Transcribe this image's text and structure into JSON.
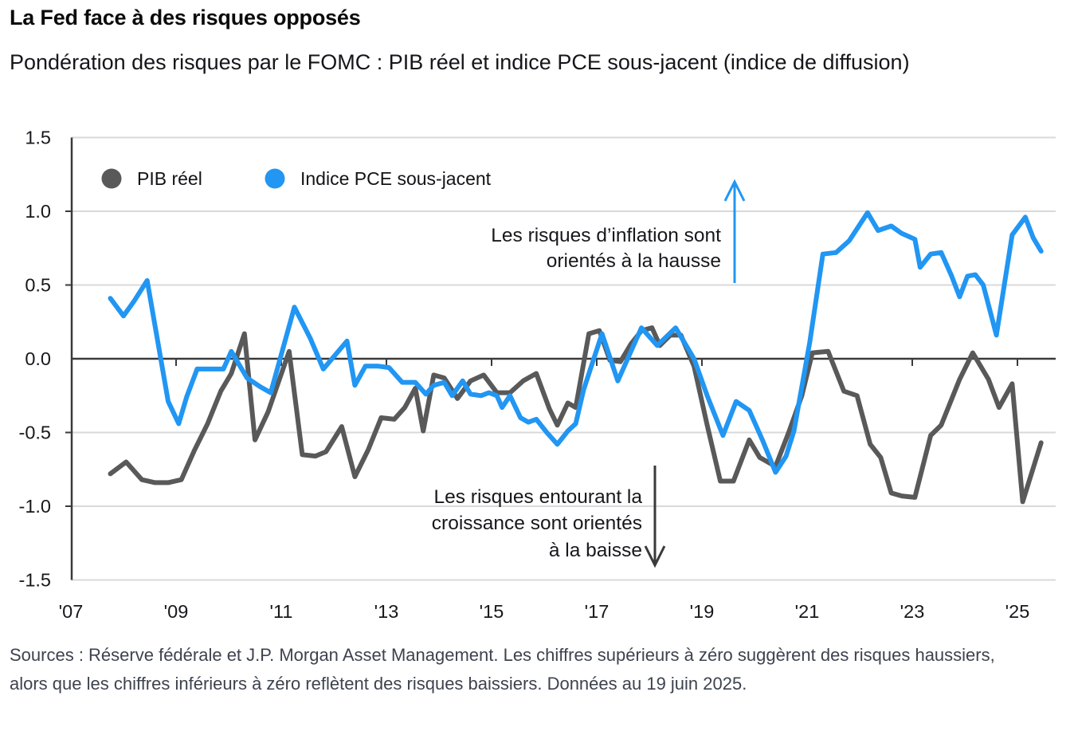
{
  "header": {
    "title": "La Fed face à des risques opposés",
    "subtitle": "Pondération des risques par le FOMC : PIB réel et indice PCE sous-jacent (indice de diffusion)"
  },
  "footer": {
    "source": "Sources : Réserve fédérale et J.P. Morgan Asset Management. Les chiffres supérieurs à zéro suggèrent des risques haussiers, alors que les chiffres inférieurs à zéro reflètent des risques baissiers. Données au 19 juin 2025."
  },
  "chart_data": {
    "type": "line",
    "title": "",
    "xlabel": "",
    "ylabel": "",
    "ylim": [
      -1.5,
      1.5
    ],
    "xlim": [
      2007,
      2025.75
    ],
    "grid": "horizontal",
    "grid_color": "#d9d9d9",
    "axis_color": "#3a3a3a",
    "zero_line_color": "#3a3a3a",
    "tick_label_color": "#17181c",
    "annotation_color": "#17181c",
    "legend_position": "top-left-inside",
    "y_ticks": [
      {
        "value": 1.5,
        "label": "1.5"
      },
      {
        "value": 1.0,
        "label": "1.0"
      },
      {
        "value": 0.5,
        "label": "0.5"
      },
      {
        "value": 0.0,
        "label": "0.0"
      },
      {
        "value": -0.5,
        "label": "-0.5"
      },
      {
        "value": -1.0,
        "label": "-1.0"
      },
      {
        "value": -1.5,
        "label": "-1.5"
      }
    ],
    "x_ticks": [
      {
        "value": 2007,
        "label": "'07"
      },
      {
        "value": 2009,
        "label": "'09"
      },
      {
        "value": 2011,
        "label": "'11"
      },
      {
        "value": 2013,
        "label": "'13"
      },
      {
        "value": 2015,
        "label": "'15"
      },
      {
        "value": 2017,
        "label": "'17"
      },
      {
        "value": 2019,
        "label": "'19"
      },
      {
        "value": 2021,
        "label": "'21"
      },
      {
        "value": 2023,
        "label": "'23"
      },
      {
        "value": 2025,
        "label": "'25"
      }
    ],
    "series": [
      {
        "name": "PIB réel",
        "color": "#595959",
        "points": [
          [
            2007.75,
            -0.78
          ],
          [
            2008.05,
            -0.7
          ],
          [
            2008.35,
            -0.82
          ],
          [
            2008.6,
            -0.84
          ],
          [
            2008.85,
            -0.84
          ],
          [
            2009.1,
            -0.82
          ],
          [
            2009.35,
            -0.62
          ],
          [
            2009.6,
            -0.44
          ],
          [
            2009.85,
            -0.22
          ],
          [
            2010.05,
            -0.1
          ],
          [
            2010.3,
            0.17
          ],
          [
            2010.5,
            -0.55
          ],
          [
            2010.75,
            -0.36
          ],
          [
            2011.15,
            0.05
          ],
          [
            2011.4,
            -0.65
          ],
          [
            2011.65,
            -0.66
          ],
          [
            2011.85,
            -0.63
          ],
          [
            2012.15,
            -0.46
          ],
          [
            2012.4,
            -0.8
          ],
          [
            2012.65,
            -0.62
          ],
          [
            2012.9,
            -0.4
          ],
          [
            2013.15,
            -0.41
          ],
          [
            2013.35,
            -0.33
          ],
          [
            2013.55,
            -0.2
          ],
          [
            2013.7,
            -0.49
          ],
          [
            2013.9,
            -0.11
          ],
          [
            2014.1,
            -0.13
          ],
          [
            2014.35,
            -0.27
          ],
          [
            2014.6,
            -0.15
          ],
          [
            2014.85,
            -0.11
          ],
          [
            2015.1,
            -0.23
          ],
          [
            2015.35,
            -0.23
          ],
          [
            2015.6,
            -0.15
          ],
          [
            2015.85,
            -0.1
          ],
          [
            2016.1,
            -0.34
          ],
          [
            2016.25,
            -0.45
          ],
          [
            2016.45,
            -0.3
          ],
          [
            2016.6,
            -0.33
          ],
          [
            2016.85,
            0.17
          ],
          [
            2017.05,
            0.19
          ],
          [
            2017.25,
            -0.01
          ],
          [
            2017.45,
            -0.02
          ],
          [
            2017.65,
            0.1
          ],
          [
            2017.85,
            0.19
          ],
          [
            2018.05,
            0.21
          ],
          [
            2018.2,
            0.09
          ],
          [
            2018.4,
            0.16
          ],
          [
            2018.6,
            0.16
          ],
          [
            2018.85,
            -0.05
          ],
          [
            2019.1,
            -0.45
          ],
          [
            2019.35,
            -0.83
          ],
          [
            2019.6,
            -0.83
          ],
          [
            2019.9,
            -0.55
          ],
          [
            2020.1,
            -0.67
          ],
          [
            2020.4,
            -0.73
          ],
          [
            2020.65,
            -0.5
          ],
          [
            2020.9,
            -0.25
          ],
          [
            2021.1,
            0.04
          ],
          [
            2021.4,
            0.05
          ],
          [
            2021.7,
            -0.22
          ],
          [
            2021.95,
            -0.25
          ],
          [
            2022.2,
            -0.58
          ],
          [
            2022.4,
            -0.67
          ],
          [
            2022.6,
            -0.91
          ],
          [
            2022.8,
            -0.93
          ],
          [
            2023.05,
            -0.94
          ],
          [
            2023.35,
            -0.52
          ],
          [
            2023.55,
            -0.45
          ],
          [
            2023.9,
            -0.14
          ],
          [
            2024.15,
            0.04
          ],
          [
            2024.45,
            -0.14
          ],
          [
            2024.65,
            -0.33
          ],
          [
            2024.9,
            -0.17
          ],
          [
            2025.1,
            -0.97
          ],
          [
            2025.45,
            -0.57
          ]
        ]
      },
      {
        "name": "Indice PCE sous-jacent",
        "color": "#2196f3",
        "points": [
          [
            2007.75,
            0.41
          ],
          [
            2008.0,
            0.29
          ],
          [
            2008.2,
            0.39
          ],
          [
            2008.45,
            0.53
          ],
          [
            2008.85,
            -0.29
          ],
          [
            2009.05,
            -0.44
          ],
          [
            2009.2,
            -0.26
          ],
          [
            2009.4,
            -0.07
          ],
          [
            2009.65,
            -0.07
          ],
          [
            2009.9,
            -0.07
          ],
          [
            2010.05,
            0.05
          ],
          [
            2010.35,
            -0.13
          ],
          [
            2010.6,
            -0.19
          ],
          [
            2010.8,
            -0.23
          ],
          [
            2011.25,
            0.35
          ],
          [
            2011.55,
            0.14
          ],
          [
            2011.8,
            -0.07
          ],
          [
            2012.25,
            0.12
          ],
          [
            2012.4,
            -0.18
          ],
          [
            2012.6,
            -0.05
          ],
          [
            2012.85,
            -0.05
          ],
          [
            2013.05,
            -0.06
          ],
          [
            2013.3,
            -0.16
          ],
          [
            2013.55,
            -0.16
          ],
          [
            2013.75,
            -0.24
          ],
          [
            2013.9,
            -0.18
          ],
          [
            2014.1,
            -0.16
          ],
          [
            2014.25,
            -0.25
          ],
          [
            2014.45,
            -0.15
          ],
          [
            2014.6,
            -0.24
          ],
          [
            2014.8,
            -0.25
          ],
          [
            2014.95,
            -0.23
          ],
          [
            2015.1,
            -0.25
          ],
          [
            2015.2,
            -0.33
          ],
          [
            2015.35,
            -0.25
          ],
          [
            2015.55,
            -0.4
          ],
          [
            2015.7,
            -0.43
          ],
          [
            2015.85,
            -0.41
          ],
          [
            2016.05,
            -0.5
          ],
          [
            2016.25,
            -0.58
          ],
          [
            2016.45,
            -0.49
          ],
          [
            2016.6,
            -0.44
          ],
          [
            2016.75,
            -0.21
          ],
          [
            2017.1,
            0.17
          ],
          [
            2017.4,
            -0.15
          ],
          [
            2017.85,
            0.21
          ],
          [
            2018.15,
            0.09
          ],
          [
            2018.5,
            0.21
          ],
          [
            2018.85,
            0.0
          ],
          [
            2019.1,
            -0.25
          ],
          [
            2019.4,
            -0.52
          ],
          [
            2019.65,
            -0.29
          ],
          [
            2019.9,
            -0.35
          ],
          [
            2020.15,
            -0.55
          ],
          [
            2020.4,
            -0.77
          ],
          [
            2020.6,
            -0.66
          ],
          [
            2020.75,
            -0.49
          ],
          [
            2021.05,
            0.11
          ],
          [
            2021.3,
            0.71
          ],
          [
            2021.55,
            0.72
          ],
          [
            2021.8,
            0.8
          ],
          [
            2022.15,
            0.99
          ],
          [
            2022.35,
            0.87
          ],
          [
            2022.6,
            0.9
          ],
          [
            2022.8,
            0.85
          ],
          [
            2023.05,
            0.81
          ],
          [
            2023.15,
            0.62
          ],
          [
            2023.35,
            0.71
          ],
          [
            2023.55,
            0.72
          ],
          [
            2023.75,
            0.56
          ],
          [
            2023.9,
            0.42
          ],
          [
            2024.05,
            0.56
          ],
          [
            2024.2,
            0.57
          ],
          [
            2024.35,
            0.5
          ],
          [
            2024.6,
            0.16
          ],
          [
            2024.9,
            0.84
          ],
          [
            2025.15,
            0.96
          ],
          [
            2025.3,
            0.82
          ],
          [
            2025.45,
            0.73
          ]
        ]
      }
    ],
    "annotations": [
      {
        "id": "inflation-up",
        "arrow": "up",
        "arrow_color": "#2196f3",
        "lines": [
          "Les risques d’inflation sont",
          "orientés à la hausse"
        ]
      },
      {
        "id": "growth-down",
        "arrow": "down",
        "arrow_color": "#3a3a3a",
        "lines": [
          "Les risques entourant la",
          "croissance sont orientés",
          "à la baisse"
        ]
      }
    ]
  }
}
